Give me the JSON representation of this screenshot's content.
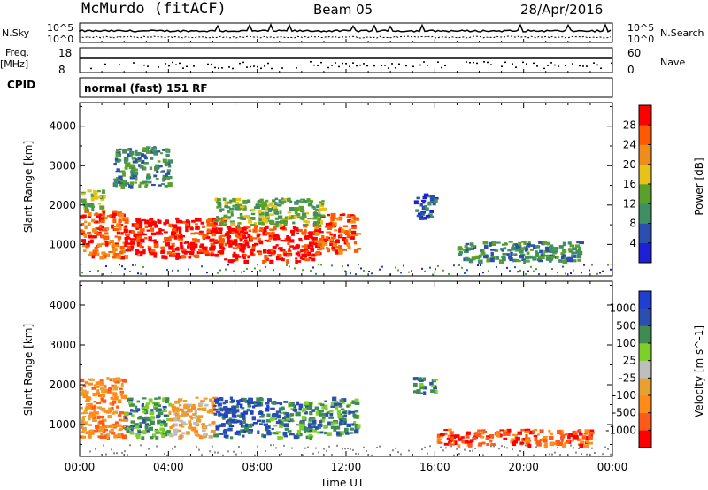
{
  "header": {
    "station": "McMurdo (fitACF)",
    "beam": "Beam 05",
    "date": "28/Apr/2016"
  },
  "top_panels": {
    "nsky_label": "N.Sky",
    "nsky_ticks": [
      "10^5",
      "10^0"
    ],
    "nsearch_label": "N.Search",
    "nsearch_ticks": [
      "10^5",
      "10^0"
    ],
    "freq_label": "Freq.",
    "freq_unit": "[MHz]",
    "freq_ticks": [
      "18",
      "8"
    ],
    "nave_label": "Nave",
    "nave_ticks": [
      "60",
      "0"
    ],
    "cpid_label": "CPID",
    "cpid_text": "normal (fast) 151 RF"
  },
  "colors": {
    "power": [
      "#1f1fd6",
      "#2a4fae",
      "#3f8f62",
      "#5aa02c",
      "#e6c21a",
      "#f08c1a",
      "#ff5a00",
      "#ff0000"
    ],
    "velocity": [
      "#ff0000",
      "#ff5a1a",
      "#ff8c1a",
      "#e8a030",
      "#bebebe",
      "#7fcf2a",
      "#3e8c52",
      "#2a4fae",
      "#1f3fd0"
    ],
    "ground": "#8c8c8c"
  },
  "chart_data": [
    {
      "type": "heatmap",
      "panel": "power",
      "xlabel": "",
      "ylabel": "Slant Range [km]",
      "xlim": [
        0,
        24
      ],
      "ylim": [
        200,
        4600
      ],
      "x_ticks": [
        "00:00",
        "04:00",
        "08:00",
        "12:00",
        "16:00",
        "20:00",
        "00:00"
      ],
      "y_ticks": [
        1000,
        2000,
        3000,
        4000
      ],
      "colorbar_label": "Power [dB]",
      "colorbar_ticks": [
        "4",
        "8",
        "12",
        "16",
        "20",
        "24",
        "28"
      ],
      "colorbar_range": [
        0,
        32
      ],
      "regions": [
        {
          "t0": 0.0,
          "t1": 2.0,
          "r0": 700,
          "r1": 1900,
          "level": 6
        },
        {
          "t0": 2.0,
          "t1": 6.5,
          "r0": 700,
          "r1": 1700,
          "level": 7
        },
        {
          "t0": 6.5,
          "t1": 10.5,
          "r0": 600,
          "r1": 1500,
          "level": 7
        },
        {
          "t0": 10.5,
          "t1": 12.5,
          "r0": 800,
          "r1": 1800,
          "level": 6
        },
        {
          "t0": 0.0,
          "t1": 1.0,
          "r0": 1900,
          "r1": 2400,
          "level": 3
        },
        {
          "t0": 1.5,
          "t1": 4.0,
          "r0": 2500,
          "r1": 3500,
          "level": 2
        },
        {
          "t0": 6.0,
          "t1": 11.0,
          "r0": 1500,
          "r1": 2200,
          "level": 3
        },
        {
          "t0": 15.0,
          "t1": 16.0,
          "r0": 1700,
          "r1": 2300,
          "level": 1
        },
        {
          "t0": 17.0,
          "t1": 22.5,
          "r0": 600,
          "r1": 1100,
          "level": 2
        }
      ]
    },
    {
      "type": "heatmap",
      "panel": "velocity",
      "xlabel": "Time UT",
      "ylabel": "Slant Range [km]",
      "xlim": [
        0,
        24
      ],
      "ylim": [
        200,
        4600
      ],
      "x_ticks": [
        "00:00",
        "04:00",
        "08:00",
        "12:00",
        "16:00",
        "20:00",
        "00:00"
      ],
      "y_ticks": [
        1000,
        2000,
        3000,
        4000
      ],
      "colorbar_label": "Velocity [m s^-1]",
      "colorbar_ticks": [
        "-1000",
        "-500",
        "-100",
        "-25",
        "25",
        "100",
        "500",
        "1000"
      ],
      "colorbar_range": [
        -1500,
        1500
      ],
      "regions": [
        {
          "t0": 0.0,
          "t1": 2.0,
          "r0": 700,
          "r1": 2200,
          "level": 2
        },
        {
          "t0": 2.0,
          "t1": 4.0,
          "r0": 700,
          "r1": 1700,
          "level": 6
        },
        {
          "t0": 4.0,
          "t1": 6.0,
          "r0": 700,
          "r1": 1700,
          "level": 3
        },
        {
          "t0": 6.0,
          "t1": 8.5,
          "r0": 700,
          "r1": 1700,
          "level": 7
        },
        {
          "t0": 8.5,
          "t1": 11.0,
          "r0": 700,
          "r1": 1600,
          "level": 6
        },
        {
          "t0": 11.0,
          "t1": 12.5,
          "r0": 800,
          "r1": 1700,
          "level": 6
        },
        {
          "t0": 15.0,
          "t1": 16.0,
          "r0": 1800,
          "r1": 2200,
          "level": 6
        },
        {
          "t0": 16.0,
          "t1": 23.0,
          "r0": 500,
          "r1": 900,
          "level": 1
        }
      ]
    }
  ]
}
